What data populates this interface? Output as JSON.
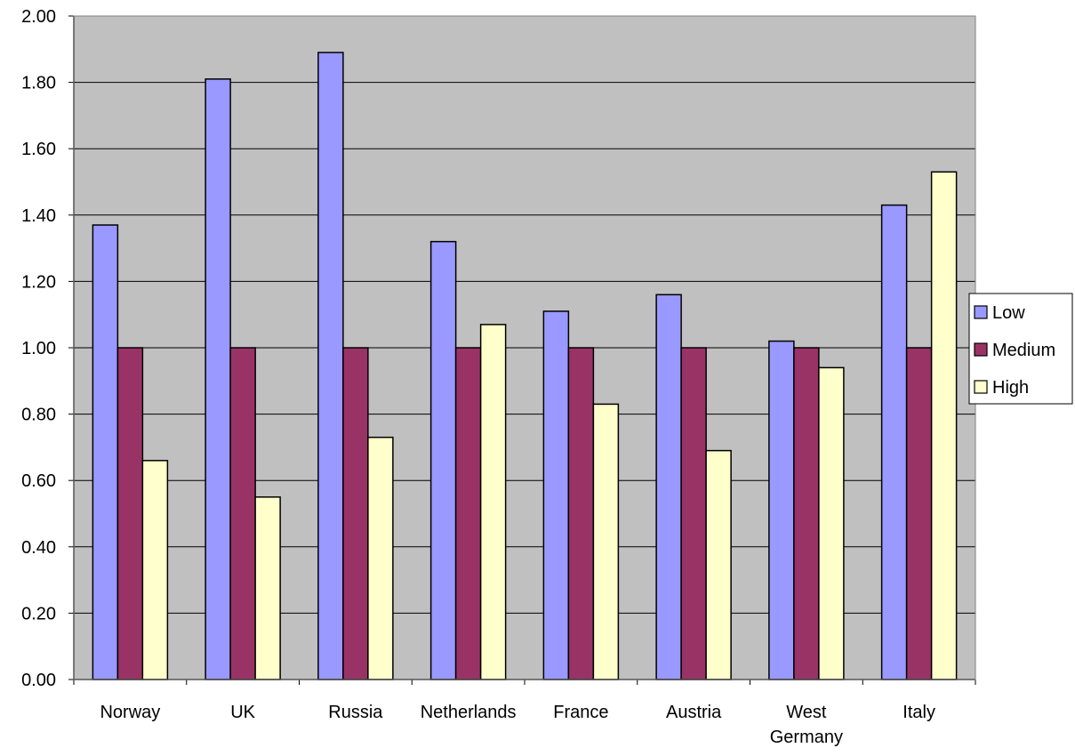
{
  "chart_data": {
    "type": "bar",
    "categories": [
      "Norway",
      "UK",
      "Russia",
      "Netherlands",
      "France",
      "Austria",
      "West Germany",
      "Italy"
    ],
    "category_lines": [
      [
        "Norway"
      ],
      [
        "UK"
      ],
      [
        "Russia"
      ],
      [
        "Netherlands"
      ],
      [
        "France"
      ],
      [
        "Austria"
      ],
      [
        "West",
        "Germany"
      ],
      [
        "Italy"
      ]
    ],
    "series": [
      {
        "name": "Low",
        "color": "#9999ff",
        "values": [
          1.37,
          1.81,
          1.89,
          1.32,
          1.11,
          1.16,
          1.02,
          1.43
        ]
      },
      {
        "name": "Medium",
        "color": "#993366",
        "values": [
          1.0,
          1.0,
          1.0,
          1.0,
          1.0,
          1.0,
          1.0,
          1.0
        ]
      },
      {
        "name": "High",
        "color": "#ffffcc",
        "values": [
          0.66,
          0.55,
          0.73,
          1.07,
          0.83,
          0.69,
          0.94,
          1.53
        ]
      }
    ],
    "ylim": [
      0,
      2.0
    ],
    "yticks": [
      "0.00",
      "0.20",
      "0.40",
      "0.60",
      "0.80",
      "1.00",
      "1.20",
      "1.40",
      "1.60",
      "1.80",
      "2.00"
    ],
    "plot_background": "#c0c0c0",
    "grid": true,
    "legend": "right",
    "title": "",
    "xlabel": "",
    "ylabel": ""
  }
}
